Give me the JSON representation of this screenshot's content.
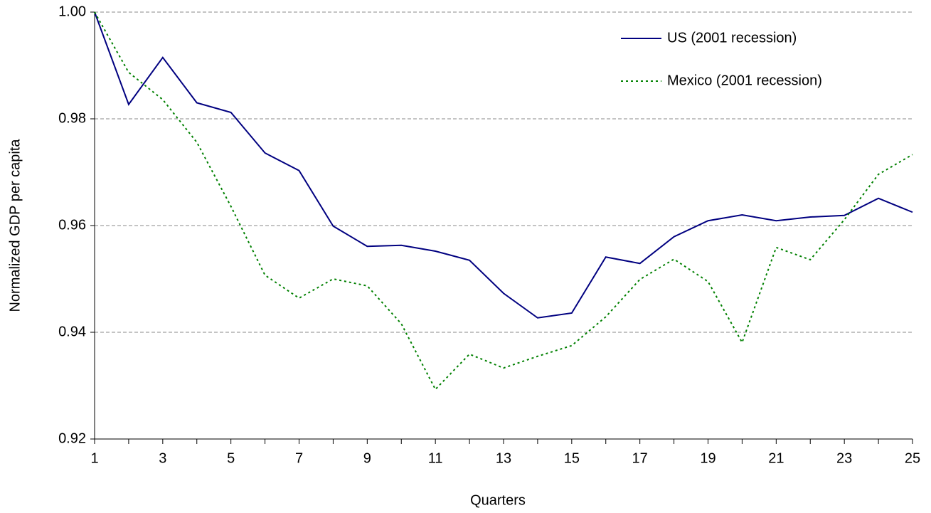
{
  "chart_data": {
    "type": "line",
    "x": [
      1,
      2,
      3,
      4,
      5,
      6,
      7,
      8,
      9,
      10,
      11,
      12,
      13,
      14,
      15,
      16,
      17,
      18,
      19,
      20,
      21,
      22,
      23,
      24,
      25
    ],
    "series": [
      {
        "name": "US (2001 recession)",
        "color": "#000080",
        "style": "solid",
        "values": [
          1.0,
          0.9827,
          0.9915,
          0.983,
          0.9812,
          0.9736,
          0.9703,
          0.9599,
          0.9561,
          0.9563,
          0.9552,
          0.9535,
          0.9473,
          0.9427,
          0.9436,
          0.9541,
          0.9529,
          0.9579,
          0.9609,
          0.962,
          0.9609,
          0.9616,
          0.9619,
          0.9651,
          0.9625
        ]
      },
      {
        "name": "Mexico (2001 recession)",
        "color": "#008000",
        "style": "dotted",
        "values": [
          1.0,
          0.9887,
          0.9836,
          0.9756,
          0.9636,
          0.9507,
          0.9464,
          0.95,
          0.9487,
          0.9416,
          0.9293,
          0.9359,
          0.9333,
          0.9355,
          0.9375,
          0.9429,
          0.9499,
          0.9537,
          0.9495,
          0.9381,
          0.9559,
          0.9536,
          0.9611,
          0.9696,
          0.9733
        ]
      }
    ],
    "xlabel": "Quarters",
    "ylabel": "Normalized GDP per capita",
    "xlim": [
      1,
      25
    ],
    "xticks": [
      1,
      3,
      5,
      7,
      9,
      11,
      13,
      15,
      17,
      19,
      21,
      23,
      25
    ],
    "ylim": [
      0.92,
      1
    ],
    "yticks": [
      0.92,
      0.94,
      0.96,
      0.98,
      {
        "value": 1,
        "label": "1.00"
      }
    ],
    "grid": true,
    "legend": "upper right"
  }
}
